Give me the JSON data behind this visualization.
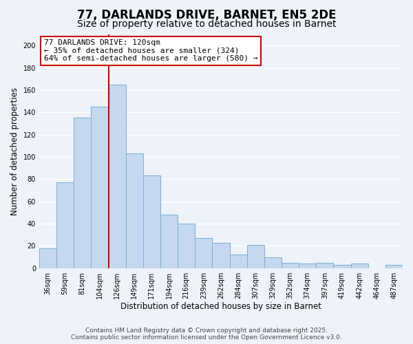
{
  "title": "77, DARLANDS DRIVE, BARNET, EN5 2DE",
  "subtitle": "Size of property relative to detached houses in Barnet",
  "xlabel": "Distribution of detached houses by size in Barnet",
  "ylabel": "Number of detached properties",
  "categories": [
    "36sqm",
    "59sqm",
    "81sqm",
    "104sqm",
    "126sqm",
    "149sqm",
    "171sqm",
    "194sqm",
    "216sqm",
    "239sqm",
    "262sqm",
    "284sqm",
    "307sqm",
    "329sqm",
    "352sqm",
    "374sqm",
    "397sqm",
    "419sqm",
    "442sqm",
    "464sqm",
    "487sqm"
  ],
  "values": [
    18,
    77,
    135,
    145,
    165,
    103,
    83,
    48,
    40,
    27,
    23,
    12,
    21,
    10,
    5,
    4,
    5,
    3,
    4,
    0,
    3
  ],
  "bar_color": "#c5d8ef",
  "bar_edge_color": "#7aadd4",
  "vline_color": "#cc0000",
  "vline_x_index": 4,
  "annotation_line1": "77 DARLANDS DRIVE: 120sqm",
  "annotation_line2": "← 35% of detached houses are smaller (324)",
  "annotation_line3": "64% of semi-detached houses are larger (580) →",
  "annotation_box_color": "white",
  "annotation_box_edge_color": "#cc0000",
  "ylim": [
    0,
    210
  ],
  "yticks": [
    0,
    20,
    40,
    60,
    80,
    100,
    120,
    140,
    160,
    180,
    200
  ],
  "background_color": "#eef2f9",
  "grid_color": "white",
  "footer_line1": "Contains HM Land Registry data © Crown copyright and database right 2025.",
  "footer_line2": "Contains public sector information licensed under the Open Government Licence v3.0.",
  "title_fontsize": 12,
  "subtitle_fontsize": 10,
  "xlabel_fontsize": 8.5,
  "ylabel_fontsize": 8.5,
  "tick_fontsize": 7,
  "annotation_fontsize": 8,
  "footer_fontsize": 6.5
}
